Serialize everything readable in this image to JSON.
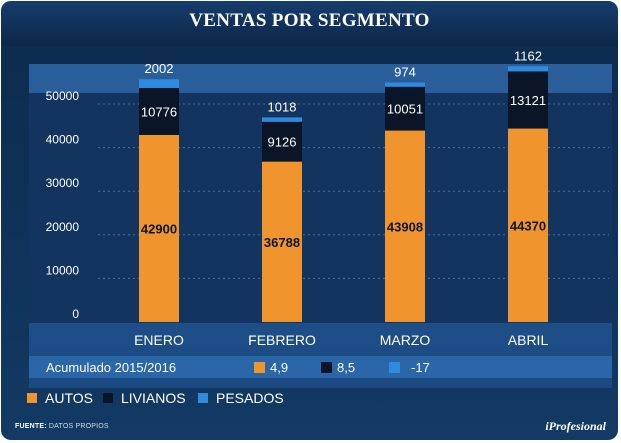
{
  "title": "VENTAS POR SEGMENTO",
  "chart_data": {
    "type": "bar",
    "stacked": true,
    "categories": [
      "ENERO",
      "FEBRERO",
      "MARZO",
      "ABRIL"
    ],
    "series": [
      {
        "name": "AUTOS",
        "values": [
          42900,
          36788,
          43908,
          44370
        ],
        "color": "#f0952e"
      },
      {
        "name": "LIVIANOS",
        "values": [
          10776,
          9126,
          10051,
          13121
        ],
        "color": "#0a1628"
      },
      {
        "name": "PESADOS",
        "values": [
          2002,
          1018,
          974,
          1162
        ],
        "color": "#2e8be0"
      }
    ],
    "yticks": [
      0,
      10000,
      20000,
      30000,
      40000,
      50000
    ],
    "ylim": [
      0,
      60000
    ],
    "grid": true
  },
  "accumulated": {
    "label": "Acumulado 2015/2016",
    "items": [
      {
        "value": "4,9",
        "color": "#f0952e"
      },
      {
        "value": "8,5",
        "color": "#0a1628"
      },
      {
        "value": "-17",
        "color": "#2e8be0"
      }
    ]
  },
  "legend": [
    {
      "label": "AUTOS",
      "color": "#f0952e"
    },
    {
      "label": "LIVIANOS",
      "color": "#0a1628"
    },
    {
      "label": "PESADOS",
      "color": "#2e8be0"
    }
  ],
  "source": {
    "label": "FUENTE:",
    "text": "DATOS PROPIOS"
  },
  "brand": "iProfesional"
}
